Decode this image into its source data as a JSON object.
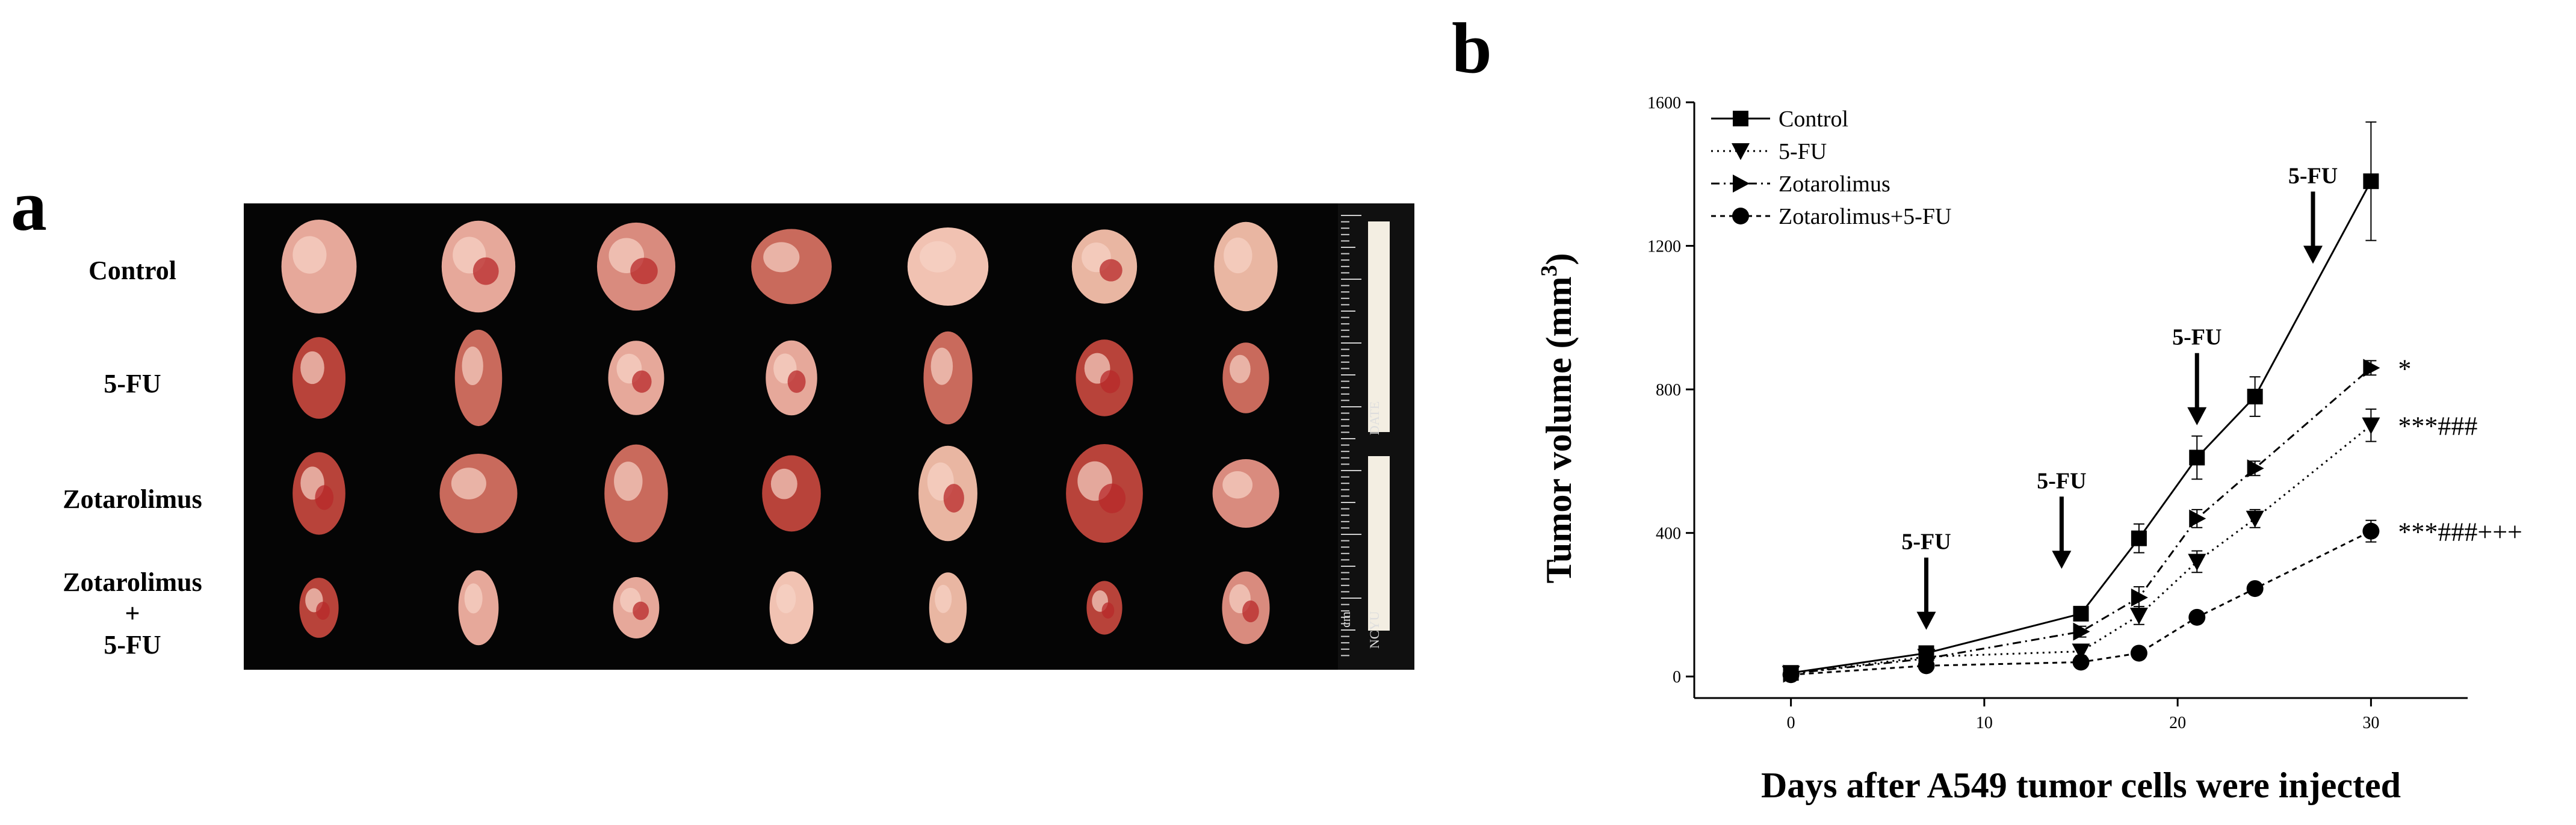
{
  "panel_a": {
    "letter": "a",
    "row_labels": [
      {
        "lines": [
          "Control"
        ]
      },
      {
        "lines": [
          "5-FU"
        ]
      },
      {
        "lines": [
          "Zotarolimus"
        ]
      },
      {
        "lines": [
          "Zotarolimus",
          "+",
          "5-FU"
        ]
      }
    ],
    "ruler_marks": [
      "DATE",
      "NCYU",
      "cm"
    ],
    "tumor_colors": [
      "#e6a89a",
      "#d98b7e",
      "#c96a5c",
      "#f1c2b2",
      "#b8433a",
      "#e9b6a2"
    ]
  },
  "panel_b": {
    "letter": "b",
    "chart_data": {
      "type": "line",
      "title": "",
      "xlabel": "Days after A549 tumor cells were injected",
      "ylabel_text": "Tumor volume (mm",
      "ylabel_superscript": "3",
      "ylabel_close": ")",
      "xlim": [
        -5,
        35
      ],
      "ylim": [
        -60,
        1600
      ],
      "xticks": [
        0,
        10,
        20,
        30
      ],
      "yticks": [
        0,
        400,
        800,
        1200,
        1600
      ],
      "grid": false,
      "legend_position": "top-left",
      "series": [
        {
          "name": "Control",
          "marker": "square",
          "dash": "solid",
          "x": [
            0,
            7,
            15,
            18,
            21,
            24,
            30
          ],
          "y": [
            10,
            65,
            175,
            385,
            610,
            780,
            1380
          ],
          "err": [
            5,
            10,
            15,
            40,
            60,
            55,
            165
          ]
        },
        {
          "name": "5-FU",
          "marker": "triangle-down",
          "dash": "dotted",
          "x": [
            0,
            7,
            15,
            18,
            21,
            24,
            30
          ],
          "y": [
            8,
            55,
            70,
            170,
            320,
            440,
            700
          ],
          "err": [
            3,
            8,
            12,
            25,
            30,
            25,
            45
          ]
        },
        {
          "name": "Zotarolimus",
          "marker": "triangle-right",
          "dash": "dashdot",
          "x": [
            0,
            7,
            15,
            18,
            21,
            24,
            30
          ],
          "y": [
            8,
            50,
            125,
            220,
            440,
            580,
            860
          ],
          "err": [
            3,
            8,
            15,
            30,
            25,
            20,
            20
          ]
        },
        {
          "name": "Zotarolimus+5-FU",
          "marker": "circle",
          "dash": "dashed",
          "x": [
            0,
            7,
            15,
            18,
            21,
            24,
            30
          ],
          "y": [
            5,
            30,
            40,
            65,
            165,
            245,
            405
          ],
          "err": [
            3,
            6,
            8,
            12,
            15,
            15,
            30
          ]
        }
      ],
      "significance": [
        {
          "series": "Zotarolimus",
          "label": "*"
        },
        {
          "series": "5-FU",
          "label": "***###"
        },
        {
          "series": "Zotarolimus+5-FU",
          "label": "***###+++"
        }
      ],
      "annotations": [
        {
          "label": "5-FU",
          "x": 7,
          "y_tip": 130
        },
        {
          "label": "5-FU",
          "x": 14,
          "y_tip": 300
        },
        {
          "label": "5-FU",
          "x": 21,
          "y_tip": 700
        },
        {
          "label": "5-FU",
          "x": 27,
          "y_tip": 1150
        }
      ]
    }
  }
}
